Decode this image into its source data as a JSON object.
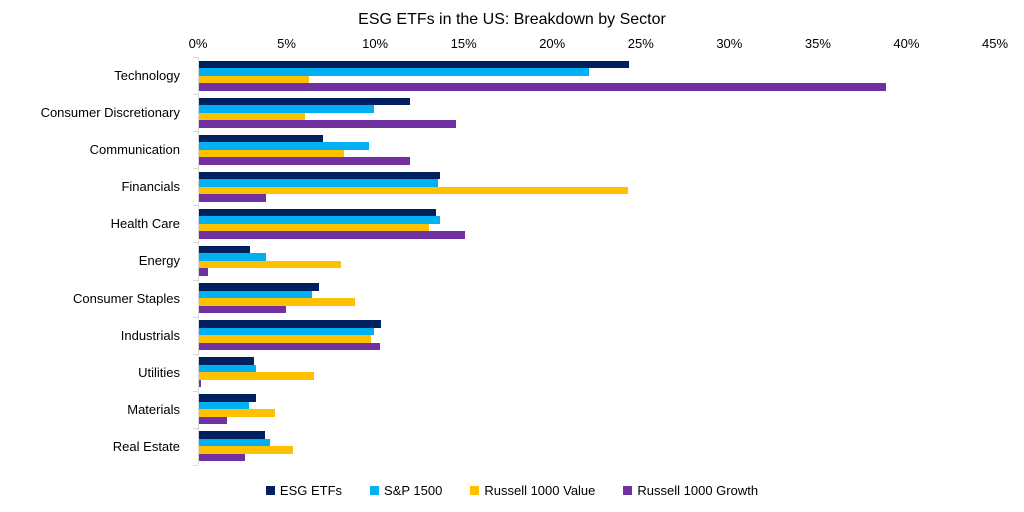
{
  "chart_data": {
    "type": "bar",
    "orientation": "horizontal",
    "title": "ESG ETFs in the US: Breakdown by Sector",
    "categories": [
      "Technology",
      "Consumer Discretionary",
      "Communication",
      "Financials",
      "Health Care",
      "Energy",
      "Consumer Staples",
      "Industrials",
      "Utilities",
      "Materials",
      "Real Estate"
    ],
    "series": [
      {
        "name": "ESG ETFs",
        "color": "#002060",
        "values": [
          24.3,
          11.9,
          7.0,
          13.6,
          13.4,
          2.9,
          6.8,
          10.3,
          3.1,
          3.2,
          3.7
        ]
      },
      {
        "name": "S&P 1500",
        "color": "#00B0F0",
        "values": [
          22.0,
          9.9,
          9.6,
          13.5,
          13.6,
          3.8,
          6.4,
          9.9,
          3.2,
          2.8,
          4.0
        ]
      },
      {
        "name": "Russell 1000 Value",
        "color": "#FFC000",
        "values": [
          6.2,
          6.0,
          8.2,
          24.2,
          13.0,
          8.0,
          8.8,
          9.7,
          6.5,
          4.3,
          5.3
        ]
      },
      {
        "name": "Russell 1000 Growth",
        "color": "#7030A0",
        "values": [
          38.8,
          14.5,
          11.9,
          3.8,
          15.0,
          0.5,
          4.9,
          10.2,
          0.1,
          1.6,
          2.6
        ]
      }
    ],
    "x_axis": {
      "min": 0,
      "max": 45,
      "tick_step": 5,
      "tick_labels": [
        "0%",
        "5%",
        "10%",
        "15%",
        "20%",
        "25%",
        "30%",
        "35%",
        "40%",
        "45%"
      ],
      "position": "top"
    },
    "legend_position": "bottom",
    "grid": false,
    "axis_line_color": "#D9D9D9",
    "text_color": "#000000",
    "background_color": "#FFFFFF"
  }
}
